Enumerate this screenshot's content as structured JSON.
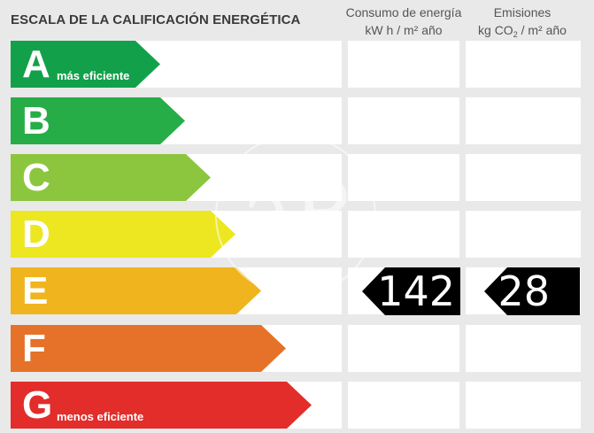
{
  "title": "ESCALA DE LA CALIFICACIÓN ENERGÉTICA",
  "columns": {
    "consumo": {
      "line1": "Consumo de energía",
      "line2": "kW h  / m² año"
    },
    "emisiones": {
      "line1": "Emisiones",
      "line2_pre": "kg CO",
      "line2_sub": "2",
      "line2_post": " / m² año"
    }
  },
  "bands": [
    {
      "letter": "A",
      "sublabel": "más eficiente",
      "color": "#12a14a"
    },
    {
      "letter": "B",
      "sublabel": "",
      "color": "#27ad48"
    },
    {
      "letter": "C",
      "sublabel": "",
      "color": "#8cc63f"
    },
    {
      "letter": "D",
      "sublabel": "",
      "color": "#ece720"
    },
    {
      "letter": "E",
      "sublabel": "",
      "color": "#f0b41e"
    },
    {
      "letter": "F",
      "sublabel": "",
      "color": "#e57228"
    },
    {
      "letter": "G",
      "sublabel": "menos eficiente",
      "color": "#e22d2b"
    }
  ],
  "rating": {
    "band": "E",
    "consumo": "142",
    "emisiones": "28"
  },
  "watermark": {
    "icon": "ap-logo-watermark",
    "text": "aP"
  }
}
